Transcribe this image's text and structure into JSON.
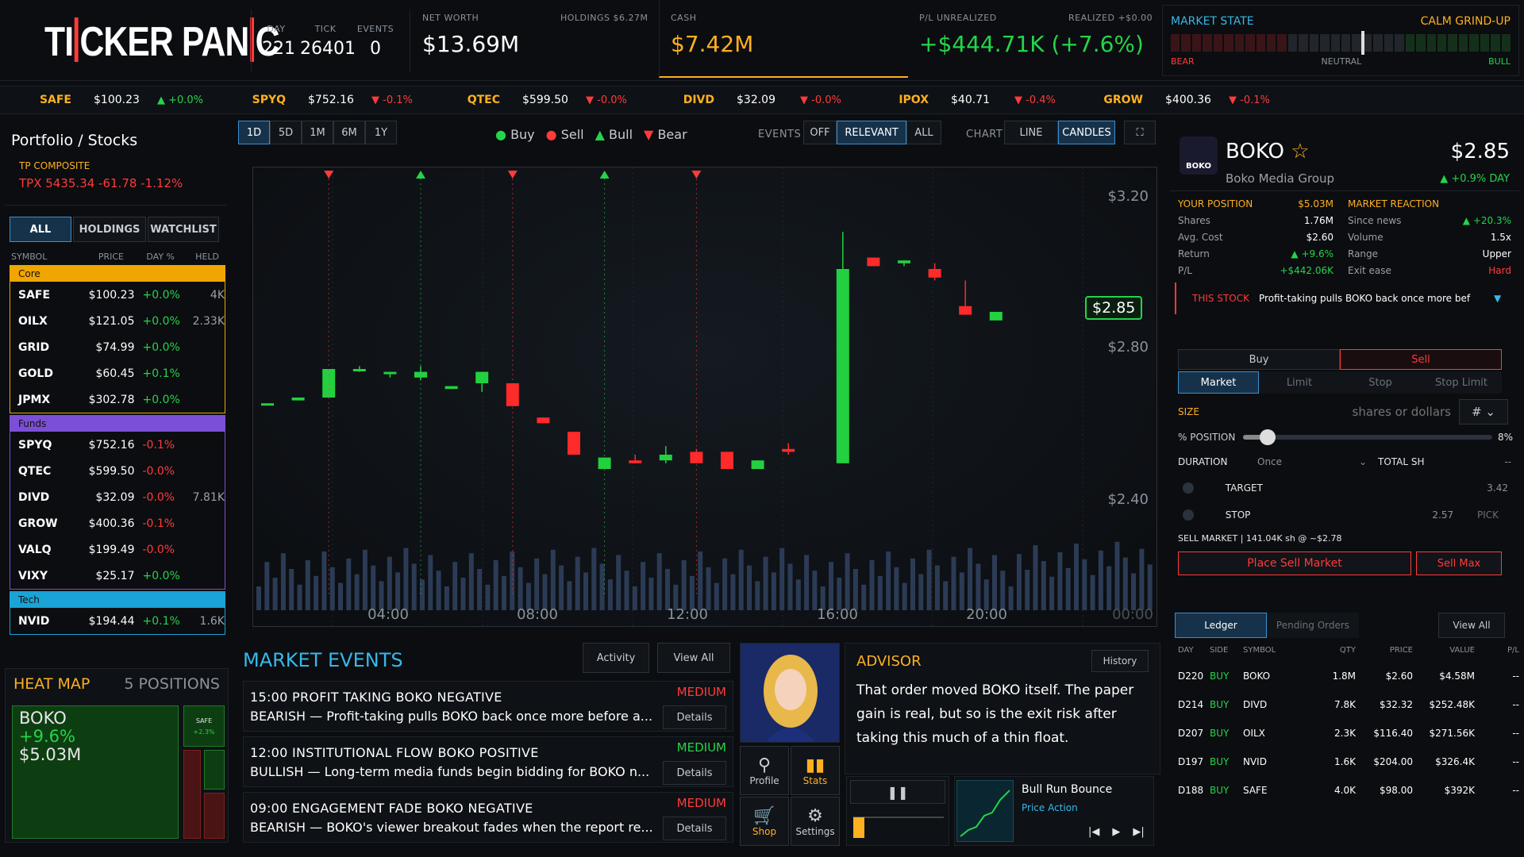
{
  "app": {
    "logo": "TICKER PANIC"
  },
  "top": {
    "day_label": "DAY",
    "day": "221",
    "tick_label": "TICK",
    "tick": "26401",
    "events_label": "EVENTS",
    "events": "0",
    "networth_label": "NET WORTH",
    "networth": "$13.69M",
    "holdings_label": "HOLDINGS $6.27M",
    "cash_label": "CASH",
    "cash": "$7.42M",
    "pl_label": "P/L UNREALIZED",
    "pl": "+$444.71K (+7.6%)",
    "realized_label": "REALIZED +$0.00",
    "market_state_label": "MARKET STATE",
    "market_state": "CALM GRIND-UP",
    "bear": "BEAR",
    "neutral": "NEUTRAL",
    "bull": "BULL",
    "market_level": 0.56
  },
  "ticker": [
    {
      "sym": "SAFE",
      "price": "$100.23",
      "chg": "▲ +0.0%",
      "up": true
    },
    {
      "sym": "SPYQ",
      "price": "$752.16",
      "chg": "▼ -0.1%",
      "up": false
    },
    {
      "sym": "QTEC",
      "price": "$599.50",
      "chg": "▼ -0.0%",
      "up": false
    },
    {
      "sym": "DIVD",
      "price": "$32.09",
      "chg": "▼ -0.0%",
      "up": false
    },
    {
      "sym": "IPOX",
      "price": "$40.71",
      "chg": "▼ -0.4%",
      "up": false
    },
    {
      "sym": "GROW",
      "price": "$400.36",
      "chg": "▼ -0.1%",
      "up": false
    }
  ],
  "left": {
    "title": "Portfolio / Stocks",
    "composite_label": "TP COMPOSITE",
    "composite": "TPX  5435.34  -61.78  -1.12%",
    "tabs": [
      "ALL",
      "HOLDINGS",
      "WATCHLIST"
    ],
    "cols": [
      "SYMBOL",
      "PRICE",
      "DAY %",
      "HELD"
    ],
    "groups": [
      {
        "name": "Core",
        "color": "#f0a500",
        "rows": [
          [
            "SAFE",
            "$100.23",
            "+0.0%",
            "4K"
          ],
          [
            "OILX",
            "$121.05",
            "+0.0%",
            "2.33K"
          ],
          [
            "GRID",
            "$74.99",
            "+0.0%",
            ""
          ],
          [
            "GOLD",
            "$60.45",
            "+0.1%",
            ""
          ],
          [
            "JPMX",
            "$302.78",
            "+0.0%",
            ""
          ]
        ]
      },
      {
        "name": "Funds",
        "color": "#7b4fd6",
        "rows": [
          [
            "SPYQ",
            "$752.16",
            "-0.1%",
            ""
          ],
          [
            "QTEC",
            "$599.50",
            "-0.0%",
            ""
          ],
          [
            "DIVD",
            "$32.09",
            "-0.0%",
            "7.81K"
          ],
          [
            "GROW",
            "$400.36",
            "-0.1%",
            ""
          ],
          [
            "VALQ",
            "$199.49",
            "-0.0%",
            ""
          ],
          [
            "VIXY",
            "$25.17",
            "+0.0%",
            ""
          ]
        ]
      },
      {
        "name": "Tech",
        "color": "#1aa3d6",
        "rows": [
          [
            "NVID",
            "$194.44",
            "+0.1%",
            "1.6K"
          ]
        ]
      }
    ]
  },
  "heat": {
    "title": "HEAT MAP",
    "positions": "5 POSITIONS",
    "main_sym": "BOKO",
    "main_pct": "+9.6%",
    "main_val": "$5.03M",
    "small_sym": "SAFE",
    "small_pct": "+2.3%"
  },
  "chart": {
    "ranges": [
      "1D",
      "5D",
      "1M",
      "6M",
      "1Y"
    ],
    "legend": [
      "Buy",
      "Sell",
      "Bull",
      "Bear"
    ],
    "events_label": "EVENTS",
    "events_opts": [
      "OFF",
      "RELEVANT",
      "ALL"
    ],
    "chart_label": "CHART",
    "chart_opts": [
      "LINE",
      "CANDLES"
    ],
    "price_tag": "$2.85",
    "yticks": [
      "$3.20",
      "$2.80",
      "$2.40"
    ],
    "xticks": [
      "04:00",
      "08:00",
      "12:00",
      "16:00",
      "20:00",
      "00:00"
    ]
  },
  "chart_data": {
    "type": "candlestick",
    "ylim": [
      2.05,
      3.3
    ],
    "candles": [
      [
        2.53,
        2.53,
        2.53,
        2.53
      ],
      [
        2.54,
        2.55,
        2.55,
        2.54
      ],
      [
        2.55,
        2.65,
        2.65,
        2.55
      ],
      [
        2.65,
        2.65,
        2.66,
        2.64
      ],
      [
        2.64,
        2.64,
        2.64,
        2.62
      ],
      [
        2.62,
        2.64,
        2.66,
        2.61
      ],
      [
        2.58,
        2.59,
        2.59,
        2.58
      ],
      [
        2.6,
        2.64,
        2.64,
        2.57
      ],
      [
        2.6,
        2.52,
        2.6,
        2.52
      ],
      [
        2.48,
        2.46,
        2.48,
        2.46
      ],
      [
        2.43,
        2.35,
        2.43,
        2.35
      ],
      [
        2.3,
        2.34,
        2.34,
        2.3
      ],
      [
        2.33,
        2.32,
        2.35,
        2.32
      ],
      [
        2.33,
        2.35,
        2.38,
        2.32
      ],
      [
        2.36,
        2.32,
        2.37,
        2.32
      ],
      [
        2.36,
        2.3,
        2.36,
        2.3
      ],
      [
        2.3,
        2.33,
        2.33,
        2.3
      ],
      [
        2.37,
        2.36,
        2.39,
        2.35
      ],
      [
        2.32,
        3.0,
        3.13,
        2.32
      ],
      [
        3.04,
        3.01,
        3.04,
        3.01
      ],
      [
        3.02,
        3.03,
        3.03,
        3.01
      ],
      [
        3.0,
        2.97,
        3.02,
        2.96
      ],
      [
        2.87,
        2.84,
        2.96,
        2.84
      ],
      [
        2.82,
        2.85,
        2.85,
        2.82
      ]
    ],
    "markers": [
      {
        "i": 2,
        "k": "bear"
      },
      {
        "i": 5,
        "k": "bull"
      },
      {
        "i": 8,
        "k": "bear"
      },
      {
        "i": 11,
        "k": "bull"
      },
      {
        "i": 14,
        "k": "bear"
      }
    ]
  },
  "events": {
    "title": "MARKET EVENTS",
    "activity": "Activity",
    "view_all": "View All",
    "details": "Details",
    "items": [
      {
        "head": "15:00  PROFIT TAKING  BOKO  NEGATIVE",
        "sev": "MEDIUM",
        "body": "BEARISH — Profit-taking pulls BOKO back once more before a..."
      },
      {
        "head": "12:00  INSTITUTIONAL FLOW  BOKO  POSITIVE",
        "sev": "MEDIUM",
        "body": "BULLISH — Long-term media funds begin bidding for BOKO n..."
      },
      {
        "head": "09:00  ENGAGEMENT FADE  BOKO  NEGATIVE",
        "sev": "MEDIUM",
        "body": "BEARISH — BOKO's viewer breakout fades when the report re..."
      }
    ]
  },
  "menu": {
    "profile": "Profile",
    "stats": "Stats",
    "shop": "Shop",
    "settings": "Settings"
  },
  "advisor": {
    "title": "ADVISOR",
    "history": "History",
    "text": "That order moved BOKO itself. The paper gain is real, but so is the exit risk after taking this much of a thin float.",
    "track": "Bull Run Bounce",
    "track_sub": "Price Action"
  },
  "stock": {
    "sym": "BOKO",
    "logo": "BOKO",
    "name": "Boko Media Group",
    "price": "$2.85",
    "day": "▲ +0.9% DAY",
    "pos_label": "YOUR POSITION",
    "pos_val": "$5.03M",
    "react_label": "MARKET REACTION",
    "pos": [
      [
        "Shares",
        "1.76M"
      ],
      [
        "Avg. Cost",
        "$2.60"
      ],
      [
        "Return",
        "▲ +9.6%"
      ],
      [
        "P/L",
        "+$442.06K"
      ]
    ],
    "react": [
      [
        "Since news",
        "▲ +20.3%"
      ],
      [
        "Volume",
        "1.5x"
      ],
      [
        "Range",
        "Upper"
      ],
      [
        "Exit ease",
        "Hard"
      ]
    ],
    "this_stock": "THIS STOCK",
    "news": "Profit-taking pulls BOKO back once more bef"
  },
  "order": {
    "buy": "Buy",
    "sell": "Sell",
    "types": [
      "Market",
      "Limit",
      "Stop",
      "Stop Limit"
    ],
    "size_label": "SIZE",
    "size_ph": "shares or dollars",
    "unit": "#",
    "pct_label": "% POSITION",
    "pct": "8%",
    "pct_val": 0.08,
    "duration_label": "DURATION",
    "duration": "Once",
    "total_label": "TOTAL SH",
    "total": "--",
    "target_label": "TARGET",
    "target": "3.42",
    "stop_label": "STOP",
    "stop": "2.57",
    "pick": "PICK",
    "summary": "SELL MARKET | 141.04K sh @ ~$2.78",
    "place": "Place Sell Market",
    "max": "Sell Max"
  },
  "ledger": {
    "tabs": [
      "Ledger",
      "Pending Orders"
    ],
    "view_all": "View All",
    "cols": [
      "DAY",
      "SIDE",
      "SYMBOL",
      "QTY",
      "PRICE",
      "VALUE",
      "P/L"
    ],
    "rows": [
      [
        "D220",
        "BUY",
        "BOKO",
        "1.8M",
        "$2.60",
        "$4.58M",
        "--"
      ],
      [
        "D214",
        "BUY",
        "DIVD",
        "7.8K",
        "$32.32",
        "$252.48K",
        "--"
      ],
      [
        "D207",
        "BUY",
        "OILX",
        "2.3K",
        "$116.40",
        "$271.56K",
        "--"
      ],
      [
        "D197",
        "BUY",
        "NVID",
        "1.6K",
        "$204.00",
        "$326.4K",
        "--"
      ],
      [
        "D188",
        "BUY",
        "SAFE",
        "4.0K",
        "$98.00",
        "$392K",
        "--"
      ]
    ]
  }
}
